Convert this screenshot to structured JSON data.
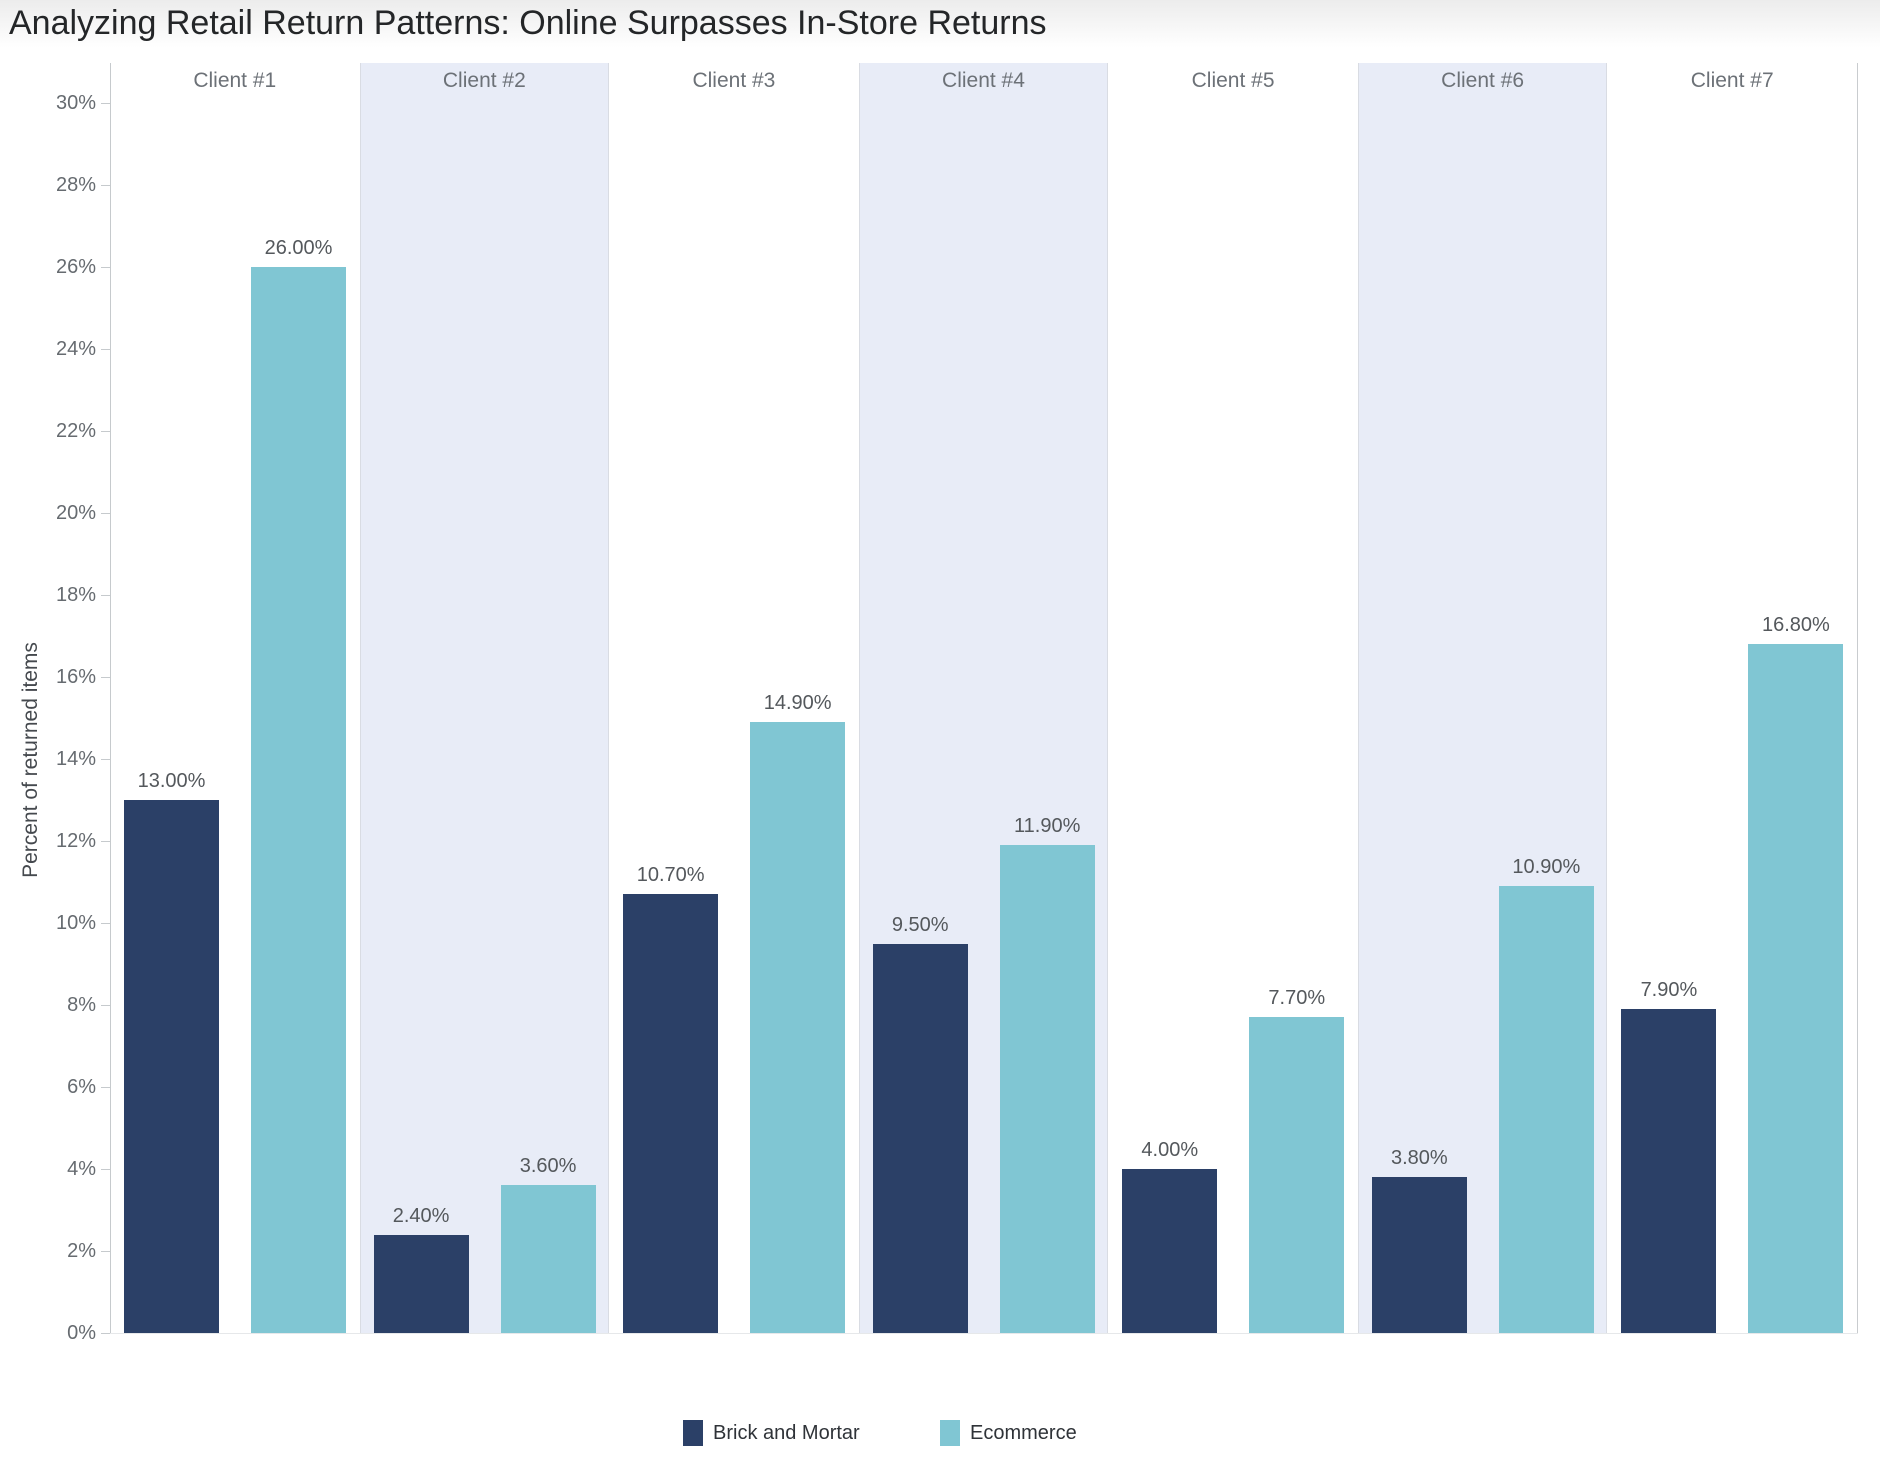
{
  "chart_data": {
    "type": "bar",
    "title": "Analyzing Retail Return Patterns: Online Surpasses In-Store Returns",
    "categories": [
      "Client #1",
      "Client #2",
      "Client #3",
      "Client #4",
      "Client #5",
      "Client #6",
      "Client #7"
    ],
    "series": [
      {
        "name": "Brick and Mortar",
        "color": "#2b4067",
        "values": [
          13.0,
          2.4,
          10.7,
          9.5,
          4.0,
          3.8,
          7.9
        ],
        "labels": [
          "13.00%",
          "2.40%",
          "10.70%",
          "9.50%",
          "4.00%",
          "3.80%",
          "7.90%"
        ]
      },
      {
        "name": "Ecommerce",
        "color": "#80c6d3",
        "values": [
          26.0,
          3.6,
          14.9,
          11.9,
          7.7,
          10.9,
          16.8
        ],
        "labels": [
          "26.00%",
          "3.60%",
          "14.90%",
          "11.90%",
          "7.70%",
          "10.90%",
          "16.80%"
        ]
      }
    ],
    "ylabel": "Percent of returned items",
    "ytick_values": [
      0,
      2,
      4,
      6,
      8,
      10,
      12,
      14,
      16,
      18,
      20,
      22,
      24,
      26,
      28,
      30
    ],
    "ytick_labels": [
      "0%",
      "2%",
      "4%",
      "6%",
      "8%",
      "10%",
      "12%",
      "14%",
      "16%",
      "18%",
      "20%",
      "22%",
      "24%",
      "26%",
      "28%",
      "30%"
    ],
    "ylim": [
      0,
      31
    ],
    "grid": false,
    "band_color": "#e8ecf7",
    "banded_categories": [
      "Client #2",
      "Client #4",
      "Client #6"
    ],
    "legend": {
      "position": "bottom",
      "items": [
        "Brick and Mortar",
        "Ecommerce"
      ]
    }
  }
}
